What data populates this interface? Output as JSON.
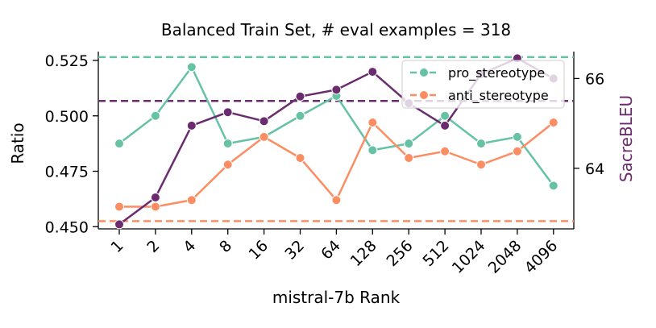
{
  "chart_data": {
    "type": "line",
    "title": "Balanced Train Set, # eval examples = 318",
    "xlabel": "mistral-7b Rank",
    "ylabel": "Ratio",
    "y2label": "SacreBLEU",
    "categories": [
      "1",
      "2",
      "4",
      "8",
      "16",
      "32",
      "64",
      "128",
      "256",
      "512",
      "1024",
      "2048",
      "4096"
    ],
    "ylim": [
      0.449,
      0.529
    ],
    "yticks": [
      "0.450",
      "0.475",
      "0.500",
      "0.525"
    ],
    "y2lim": [
      62.65,
      66.6
    ],
    "y2ticks": [
      "64",
      "66"
    ],
    "series": [
      {
        "name": "pro_stereotype",
        "axis": "left",
        "color": "#66c2a5",
        "values": [
          0.4875,
          0.5,
          0.522,
          0.4875,
          0.4905,
          0.5,
          0.509,
          0.4845,
          0.4875,
          0.5,
          0.4875,
          0.4905,
          0.4685
        ]
      },
      {
        "name": "anti_stereotype",
        "axis": "left",
        "color": "#fc8d62",
        "values": [
          0.459,
          0.459,
          0.462,
          0.478,
          0.4905,
          0.481,
          0.462,
          0.497,
          0.481,
          0.484,
          0.478,
          0.484,
          0.497
        ]
      },
      {
        "name": "SacreBLEU",
        "axis": "right",
        "color": "#6a2c6e",
        "values": [
          62.75,
          63.35,
          64.95,
          65.25,
          65.05,
          65.6,
          65.75,
          66.15,
          65.45,
          64.95,
          66.1,
          66.45,
          66.0
        ]
      }
    ],
    "reference_lines": [
      {
        "name": "pro-baseline",
        "axis": "left",
        "value": 0.5265,
        "color": "#66c2a5"
      },
      {
        "name": "anti-baseline",
        "axis": "left",
        "value": 0.4525,
        "color": "#fc8d62"
      },
      {
        "name": "bleu-baseline",
        "axis": "right",
        "value": 65.5,
        "color": "#6a2c6e"
      }
    ],
    "legend": {
      "position": "top-right",
      "entries": [
        "pro_stereotype",
        "anti_stereotype"
      ]
    }
  }
}
